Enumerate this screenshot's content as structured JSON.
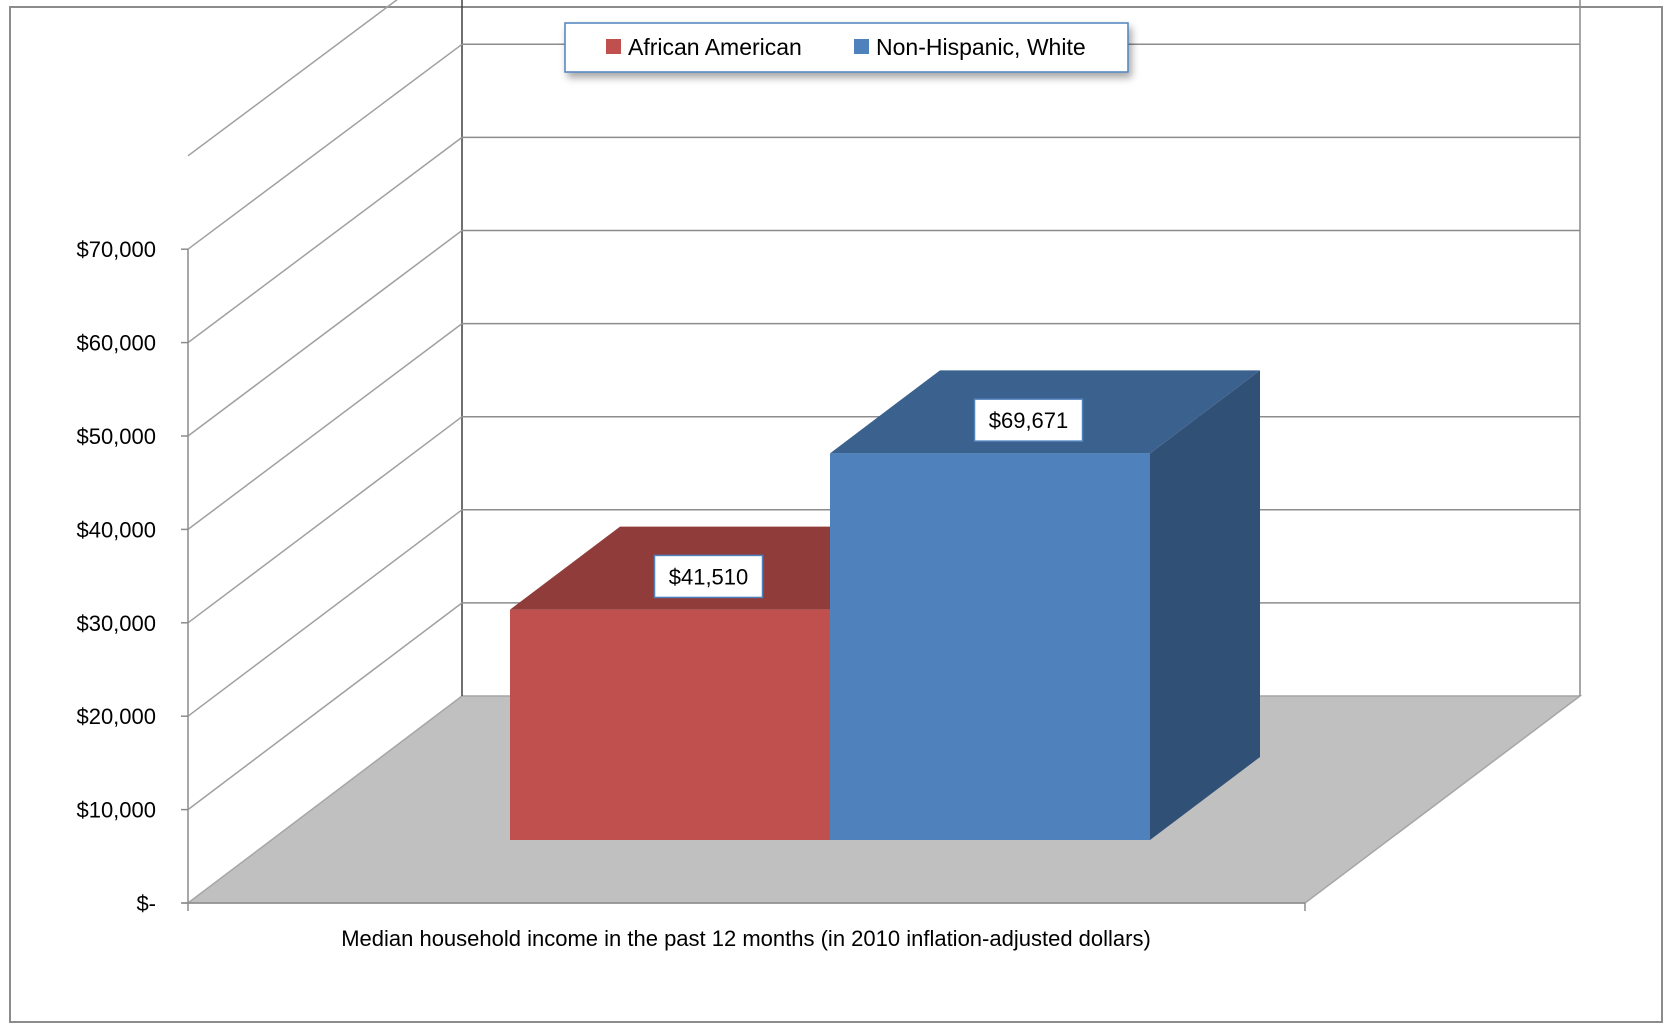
{
  "chart_data": {
    "type": "bar",
    "title": "",
    "xlabel": "Median household income in the past 12 months (in 2010 inflation-adjusted dollars)",
    "ylabel": "",
    "ylim": [
      0,
      70000
    ],
    "y_ticks": [
      0,
      10000,
      20000,
      30000,
      40000,
      50000,
      60000,
      70000
    ],
    "y_tick_labels": [
      "$-",
      "$10,000",
      "$20,000",
      "$30,000",
      "$40,000",
      "$50,000",
      "$60,000",
      "$70,000"
    ],
    "grid": true,
    "legend_position": "top-center",
    "series": [
      {
        "name": "African American",
        "value": 41510,
        "label": "$41,510",
        "color": "#C0504D"
      },
      {
        "name": "Non-Hispanic, White",
        "value": 69671,
        "label": "$69,671",
        "color": "#4F81BD"
      }
    ]
  }
}
